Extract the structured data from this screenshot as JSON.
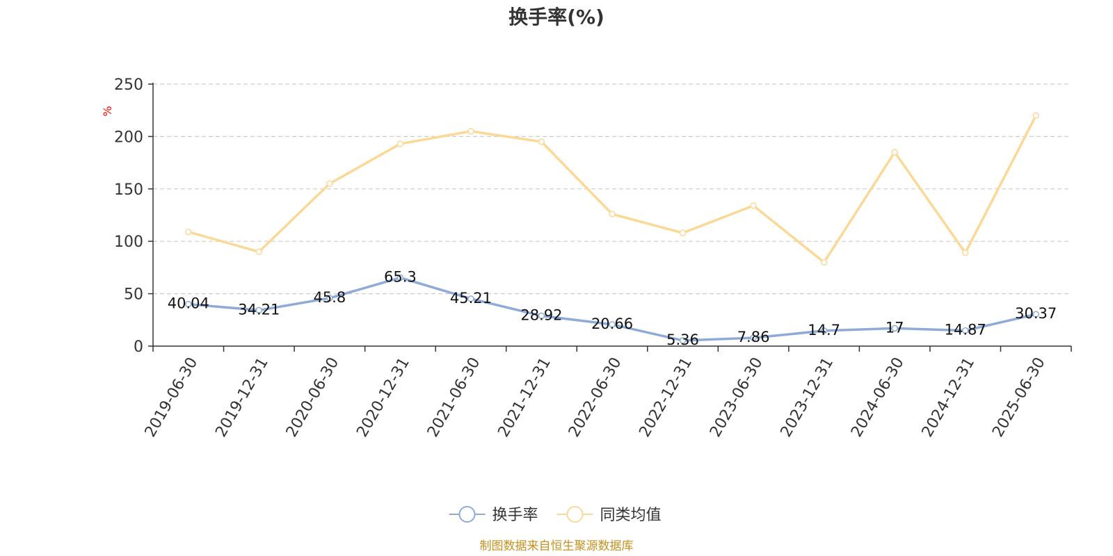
{
  "chart_data": {
    "type": "line",
    "title": "换手率(%)",
    "y_unit": "%",
    "ylim": [
      0,
      250
    ],
    "y_ticks": [
      0,
      50,
      100,
      150,
      200,
      250
    ],
    "grid": true,
    "legend_position": "bottom-center",
    "categories": [
      "2019-06-30",
      "2019-12-31",
      "2020-06-30",
      "2020-12-31",
      "2021-06-30",
      "2021-12-31",
      "2022-06-30",
      "2022-12-31",
      "2023-06-30",
      "2023-12-31",
      "2024-06-30",
      "2024-12-31",
      "2025-06-30"
    ],
    "series": [
      {
        "name": "换手率",
        "color": "#8eaad9",
        "show_labels": true,
        "labels": [
          "40.04",
          "34.21",
          "45.8",
          "65.3",
          "45.21",
          "28.92",
          "20.66",
          "5.36",
          "7.86",
          "14.7",
          "17",
          "14.87",
          "30.37"
        ],
        "values": [
          40.04,
          34.21,
          45.8,
          65.3,
          45.21,
          28.92,
          20.66,
          5.36,
          7.86,
          14.7,
          17,
          14.87,
          30.37
        ]
      },
      {
        "name": "同类均值",
        "color": "#fcd896",
        "show_labels": false,
        "values": [
          109,
          90,
          155,
          193,
          205,
          195,
          126,
          108,
          134,
          80,
          185,
          89,
          220
        ]
      }
    ]
  },
  "source_note": "制图数据来自恒生聚源数据库",
  "colors": {
    "axis": "#333333",
    "grid": "#cccccc",
    "unit": "#ff0000",
    "source": "#c8901e"
  }
}
